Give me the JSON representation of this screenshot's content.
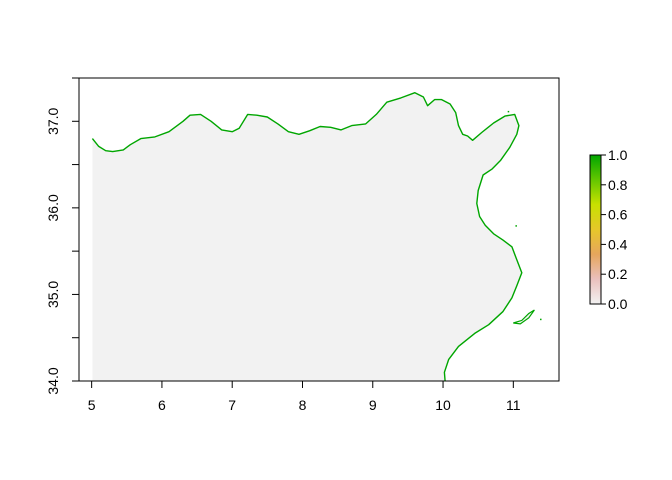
{
  "chart_data": {
    "type": "heatmap",
    "subtype": "raster-map",
    "xlim": [
      4.82,
      11.65
    ],
    "ylim": [
      34.0,
      37.5
    ],
    "x_ticks": [
      5,
      6,
      7,
      8,
      9,
      10,
      11
    ],
    "x_tick_labels": [
      "5",
      "6",
      "7",
      "8",
      "9",
      "10",
      "11"
    ],
    "y_ticks": [
      34.0,
      35.0,
      36.0,
      37.0
    ],
    "y_tick_labels": [
      "34.0",
      "35.0",
      "36.0",
      "37.0"
    ],
    "grid": false,
    "raster_value": 0.0,
    "colors": {
      "land_fill": "#f2f2f2",
      "coast": "#00a600",
      "frame": "#000000",
      "background": "#ffffff"
    },
    "legend": {
      "position": "right",
      "range": [
        0.0,
        1.0
      ],
      "ticks": [
        0.0,
        0.2,
        0.4,
        0.6,
        0.8,
        1.0
      ],
      "tick_labels": [
        "0.0",
        "0.2",
        "0.4",
        "0.6",
        "0.8",
        "1.0"
      ],
      "colors": [
        "#f2f2f2",
        "#eac0bd",
        "#e6a65d",
        "#e6c72a",
        "#c8e100",
        "#63c600",
        "#00a600"
      ]
    },
    "coastline": [
      [
        5.01,
        36.8
      ],
      [
        5.05,
        36.76
      ],
      [
        5.1,
        36.71
      ],
      [
        5.2,
        36.66
      ],
      [
        5.3,
        36.65
      ],
      [
        5.45,
        36.67
      ],
      [
        5.55,
        36.73
      ],
      [
        5.7,
        36.8
      ],
      [
        5.9,
        36.82
      ],
      [
        6.1,
        36.88
      ],
      [
        6.3,
        37.0
      ],
      [
        6.4,
        37.07
      ],
      [
        6.55,
        37.08
      ],
      [
        6.7,
        37.0
      ],
      [
        6.85,
        36.9
      ],
      [
        7.0,
        36.88
      ],
      [
        7.1,
        36.92
      ],
      [
        7.22,
        37.08
      ],
      [
        7.35,
        37.07
      ],
      [
        7.5,
        37.05
      ],
      [
        7.65,
        36.97
      ],
      [
        7.8,
        36.88
      ],
      [
        7.95,
        36.85
      ],
      [
        8.1,
        36.89
      ],
      [
        8.25,
        36.94
      ],
      [
        8.4,
        36.93
      ],
      [
        8.55,
        36.9
      ],
      [
        8.7,
        36.95
      ],
      [
        8.9,
        36.97
      ],
      [
        9.05,
        37.08
      ],
      [
        9.2,
        37.22
      ],
      [
        9.4,
        37.27
      ],
      [
        9.6,
        37.33
      ],
      [
        9.72,
        37.28
      ],
      [
        9.78,
        37.18
      ],
      [
        9.88,
        37.25
      ],
      [
        9.98,
        37.25
      ],
      [
        10.1,
        37.2
      ],
      [
        10.18,
        37.1
      ],
      [
        10.22,
        36.95
      ],
      [
        10.28,
        36.85
      ],
      [
        10.35,
        36.83
      ],
      [
        10.42,
        36.78
      ],
      [
        10.55,
        36.87
      ],
      [
        10.72,
        36.98
      ],
      [
        10.88,
        37.06
      ],
      [
        11.02,
        37.08
      ],
      [
        11.08,
        36.95
      ],
      [
        11.05,
        36.85
      ],
      [
        10.95,
        36.7
      ],
      [
        10.82,
        36.55
      ],
      [
        10.7,
        36.45
      ],
      [
        10.57,
        36.38
      ],
      [
        10.5,
        36.2
      ],
      [
        10.48,
        36.05
      ],
      [
        10.52,
        35.9
      ],
      [
        10.6,
        35.8
      ],
      [
        10.72,
        35.7
      ],
      [
        10.85,
        35.63
      ],
      [
        10.98,
        35.55
      ],
      [
        11.05,
        35.4
      ],
      [
        11.12,
        35.25
      ],
      [
        11.05,
        35.1
      ],
      [
        10.98,
        34.96
      ],
      [
        10.85,
        34.8
      ],
      [
        10.65,
        34.65
      ],
      [
        10.45,
        34.55
      ],
      [
        10.22,
        34.4
      ],
      [
        10.08,
        34.25
      ],
      [
        10.02,
        34.1
      ],
      [
        10.03,
        34.0
      ]
    ],
    "islands": [
      [
        [
          11.0,
          34.67
        ],
        [
          11.12,
          34.7
        ],
        [
          11.22,
          34.78
        ],
        [
          11.3,
          34.82
        ],
        [
          11.22,
          34.73
        ],
        [
          11.1,
          34.66
        ],
        [
          11.0,
          34.67
        ]
      ]
    ]
  }
}
